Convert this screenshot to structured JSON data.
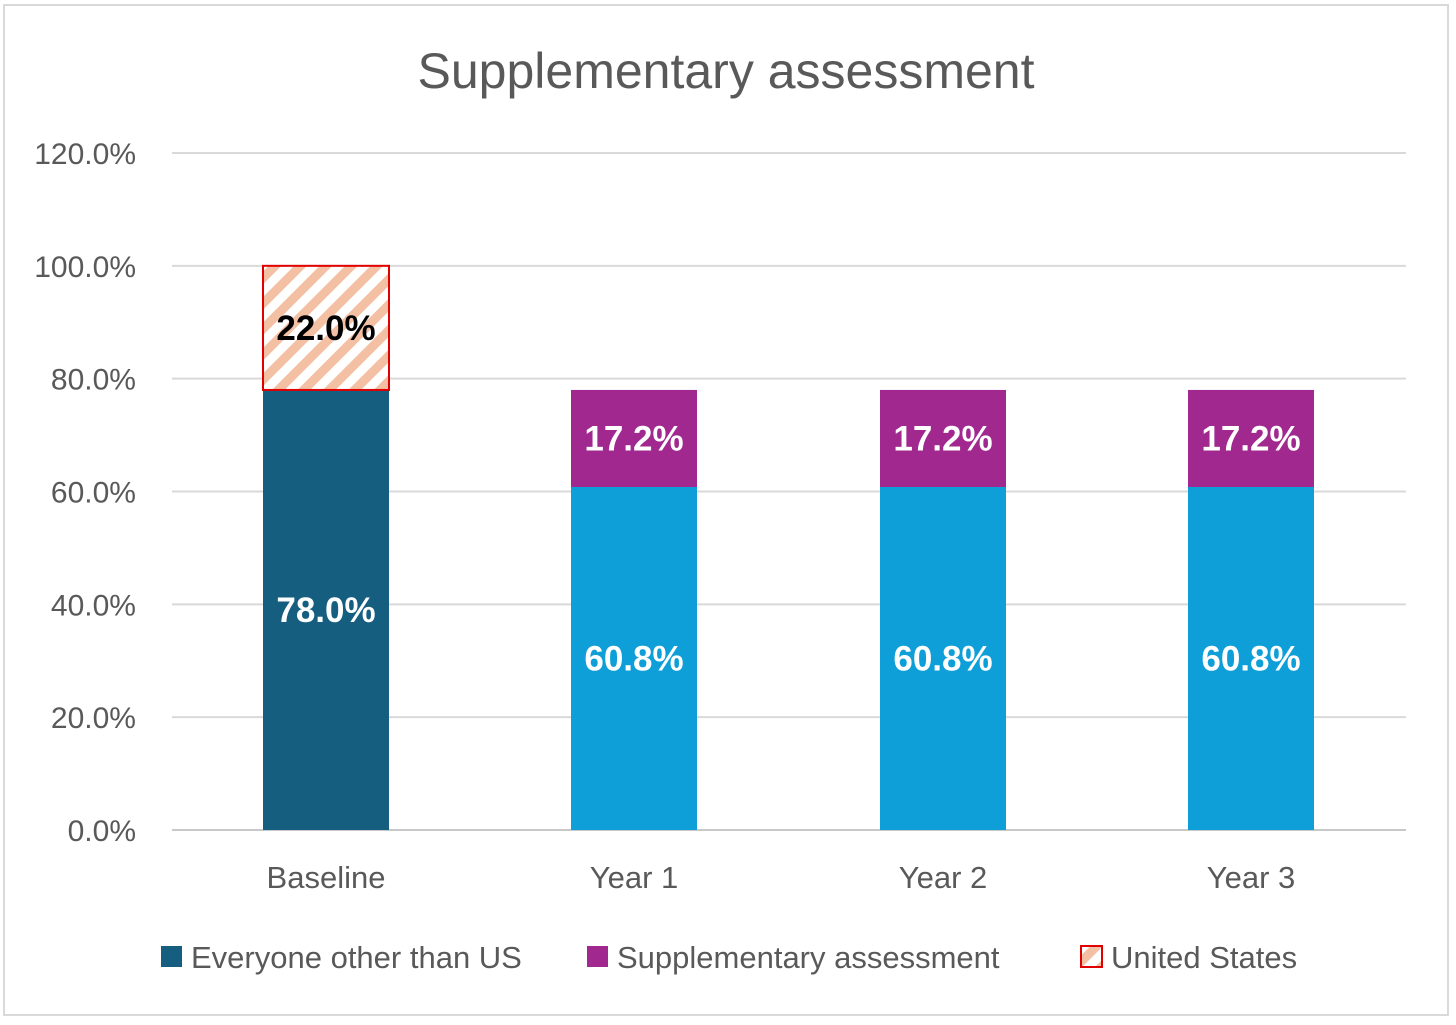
{
  "chart_data": {
    "type": "bar",
    "stacked": true,
    "title": "Supplementary assessment",
    "xlabel": "",
    "ylabel": "",
    "categories": [
      "Baseline",
      "Year 1",
      "Year 2",
      "Year 3"
    ],
    "ylim": [
      0,
      120
    ],
    "yticks": [
      0,
      20,
      40,
      60,
      80,
      100,
      120
    ],
    "ytick_labels": [
      "0.0%",
      "20.0%",
      "40.0%",
      "60.0%",
      "80.0%",
      "100.0%",
      "120.0%"
    ],
    "grid": true,
    "legend_position": "bottom",
    "series": [
      {
        "name": "Everyone other than US",
        "values": [
          78.0,
          null,
          null,
          null
        ],
        "labels": [
          "78.0%",
          "",
          "",
          ""
        ],
        "color": "#155e80",
        "label_color": "#ffffff"
      },
      {
        "name": "",
        "values": [
          null,
          60.8,
          60.8,
          60.8
        ],
        "labels": [
          "",
          "60.8%",
          "60.8%",
          "60.8%"
        ],
        "color": "#0f9fd8",
        "label_color": "#ffffff",
        "show_in_legend": false
      },
      {
        "name": "Supplementary assessment",
        "values": [
          null,
          17.2,
          17.2,
          17.2
        ],
        "labels": [
          "",
          "17.2%",
          "17.2%",
          "17.2%"
        ],
        "color": "#a0288f",
        "label_color": "#ffffff"
      },
      {
        "name": "United States",
        "values": [
          22.0,
          null,
          null,
          null
        ],
        "labels": [
          "22.0%",
          "",
          "",
          ""
        ],
        "color": "#f4c0a3",
        "pattern": "diagonal-stripes",
        "border_color": "#e00000",
        "label_color": "#000000"
      }
    ]
  }
}
